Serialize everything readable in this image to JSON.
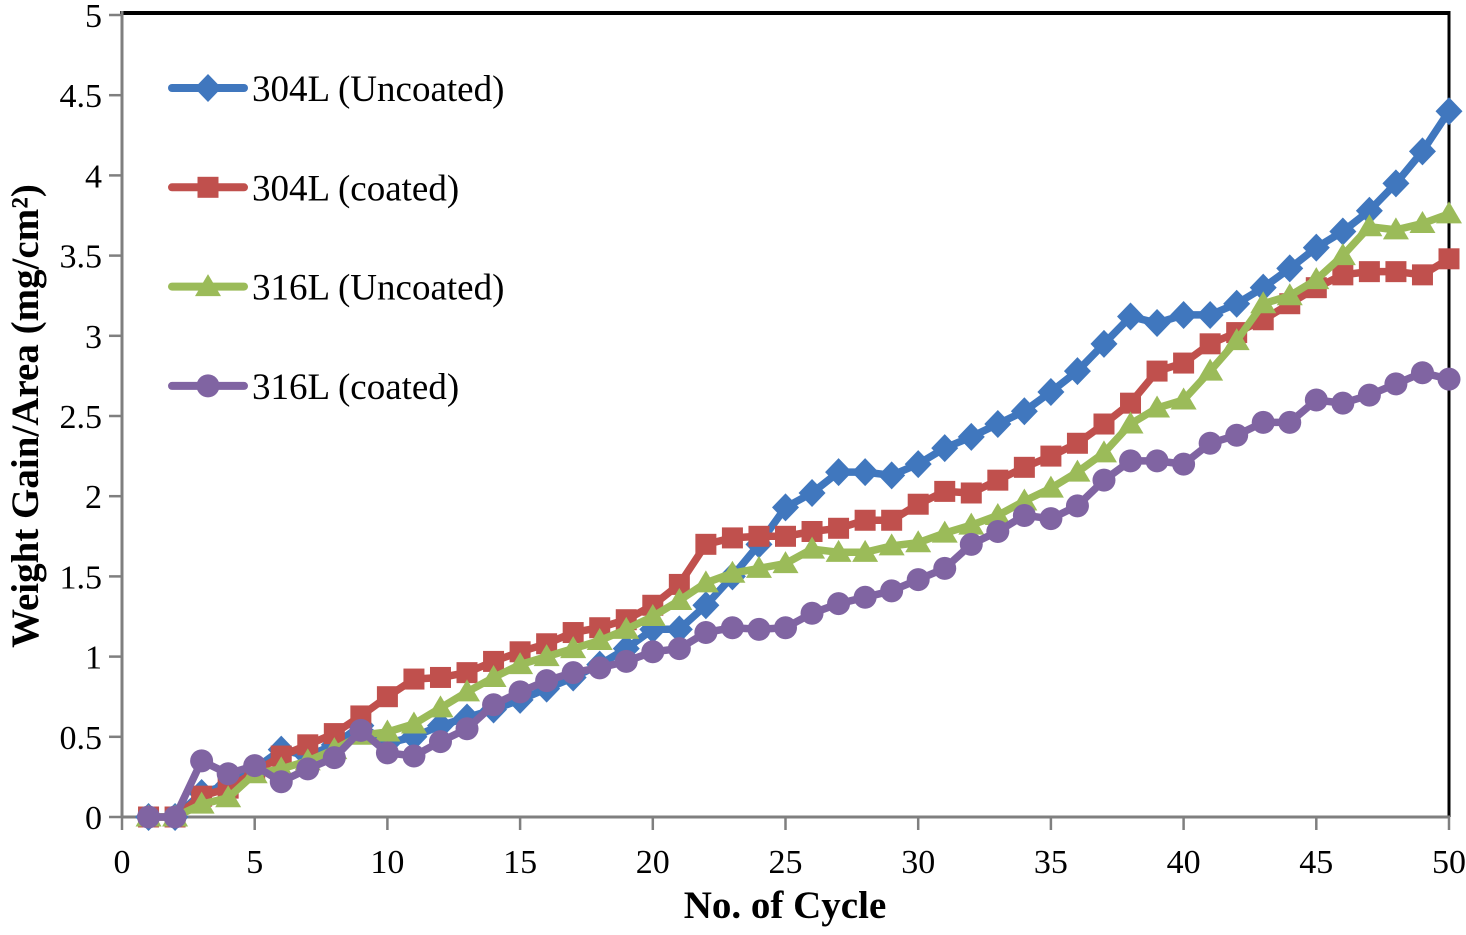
{
  "chart_data": {
    "type": "line",
    "title": "",
    "xlabel": "No. of Cycle",
    "ylabel": "Weight Gain/Area (mg/cm²)",
    "xlim": [
      0,
      50
    ],
    "ylim": [
      0,
      5
    ],
    "xticks": [
      0,
      5,
      10,
      15,
      20,
      25,
      30,
      35,
      40,
      45,
      50
    ],
    "yticks": [
      0,
      0.5,
      1,
      1.5,
      2,
      2.5,
      3,
      3.5,
      4,
      4.5,
      5
    ],
    "grid": false,
    "legend_position": "inside-top-left",
    "axis_color": "#7F7F7F",
    "border_color": "#000000",
    "x": [
      1,
      2,
      3,
      4,
      5,
      6,
      7,
      8,
      9,
      10,
      11,
      12,
      13,
      14,
      15,
      16,
      17,
      18,
      19,
      20,
      21,
      22,
      23,
      24,
      25,
      26,
      27,
      28,
      29,
      30,
      31,
      32,
      33,
      34,
      35,
      36,
      37,
      38,
      39,
      40,
      41,
      42,
      43,
      44,
      45,
      46,
      47,
      48,
      49,
      50
    ],
    "series": [
      {
        "name": "304L (Uncoated)",
        "color": "#4077BE",
        "marker": "diamond",
        "values": [
          0,
          0,
          0.15,
          0.2,
          0.3,
          0.42,
          0.38,
          0.45,
          0.57,
          0.46,
          0.5,
          0.57,
          0.62,
          0.67,
          0.73,
          0.8,
          0.87,
          0.95,
          1.05,
          1.17,
          1.17,
          1.32,
          1.5,
          1.7,
          1.93,
          2.02,
          2.15,
          2.15,
          2.13,
          2.2,
          2.3,
          2.37,
          2.45,
          2.53,
          2.65,
          2.78,
          2.95,
          3.12,
          3.08,
          3.13,
          3.13,
          3.2,
          3.3,
          3.42,
          3.55,
          3.65,
          3.78,
          3.95,
          4.15,
          4.4
        ]
      },
      {
        "name": "304L (coated)",
        "color": "#C0504D",
        "marker": "square",
        "values": [
          0,
          0,
          0.13,
          0.18,
          0.28,
          0.38,
          0.45,
          0.52,
          0.63,
          0.75,
          0.86,
          0.87,
          0.9,
          0.97,
          1.03,
          1.08,
          1.15,
          1.18,
          1.23,
          1.32,
          1.45,
          1.7,
          1.74,
          1.75,
          1.75,
          1.78,
          1.8,
          1.85,
          1.85,
          1.95,
          2.03,
          2.02,
          2.1,
          2.18,
          2.25,
          2.33,
          2.45,
          2.58,
          2.78,
          2.83,
          2.95,
          3.02,
          3.1,
          3.2,
          3.3,
          3.38,
          3.4,
          3.4,
          3.38,
          3.48
        ]
      },
      {
        "name": "316L (Uncoated)",
        "color": "#9BBB59",
        "marker": "triangle",
        "values": [
          0,
          0,
          0.08,
          0.12,
          0.27,
          0.3,
          0.35,
          0.42,
          0.51,
          0.53,
          0.58,
          0.68,
          0.78,
          0.87,
          0.95,
          1.0,
          1.05,
          1.1,
          1.17,
          1.25,
          1.35,
          1.46,
          1.52,
          1.55,
          1.58,
          1.67,
          1.65,
          1.65,
          1.69,
          1.71,
          1.77,
          1.82,
          1.88,
          1.97,
          2.05,
          2.15,
          2.27,
          2.45,
          2.55,
          2.6,
          2.78,
          2.97,
          3.2,
          3.25,
          3.35,
          3.5,
          3.68,
          3.66,
          3.7,
          3.76
        ]
      },
      {
        "name": "316L (coated)",
        "color": "#8064A2",
        "marker": "circle",
        "values": [
          0,
          0,
          0.35,
          0.27,
          0.32,
          0.22,
          0.3,
          0.37,
          0.54,
          0.4,
          0.38,
          0.47,
          0.55,
          0.7,
          0.78,
          0.85,
          0.9,
          0.93,
          0.97,
          1.03,
          1.05,
          1.15,
          1.18,
          1.17,
          1.18,
          1.27,
          1.33,
          1.37,
          1.41,
          1.48,
          1.55,
          1.7,
          1.78,
          1.88,
          1.86,
          1.94,
          2.1,
          2.22,
          2.22,
          2.2,
          2.33,
          2.38,
          2.46,
          2.46,
          2.6,
          2.58,
          2.63,
          2.7,
          2.77,
          2.73
        ]
      }
    ]
  }
}
